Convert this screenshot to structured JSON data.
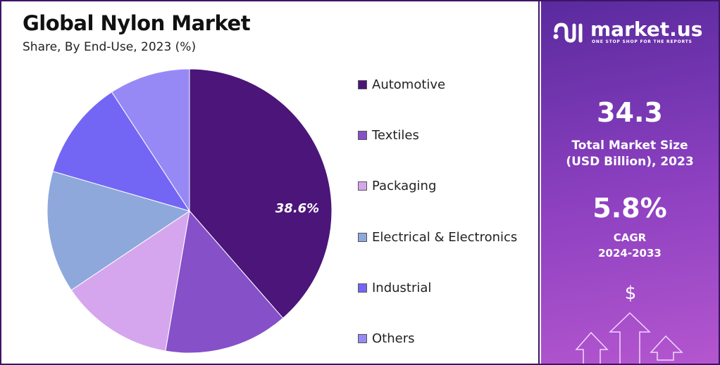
{
  "chart_data": {
    "type": "pie",
    "title": "Global Nylon Market",
    "subtitle": "Share, By End-Use, 2023 (%)",
    "categories": [
      "Automotive",
      "Textiles",
      "Packaging",
      "Electrical & Electronics",
      "Industrial",
      "Others"
    ],
    "values": [
      38.6,
      14.1,
      12.9,
      13.9,
      11.3,
      9.2
    ],
    "colors": [
      "#4b1579",
      "#8650c9",
      "#d5a6ee",
      "#8ea8dc",
      "#7466f4",
      "#9689f6"
    ],
    "data_labels": [
      "38.6%"
    ],
    "legend_position": "right"
  },
  "brand": {
    "name": "market.us",
    "tagline": "ONE STOP SHOP FOR THE REPORTS"
  },
  "stats": {
    "market_size": "34.3",
    "market_size_label_1": "Total Market Size",
    "market_size_label_2": "(USD Billion), 2023",
    "cagr": "5.8%",
    "cagr_label_1": "CAGR",
    "cagr_label_2": "2024-2033",
    "currency_symbol": "$"
  }
}
